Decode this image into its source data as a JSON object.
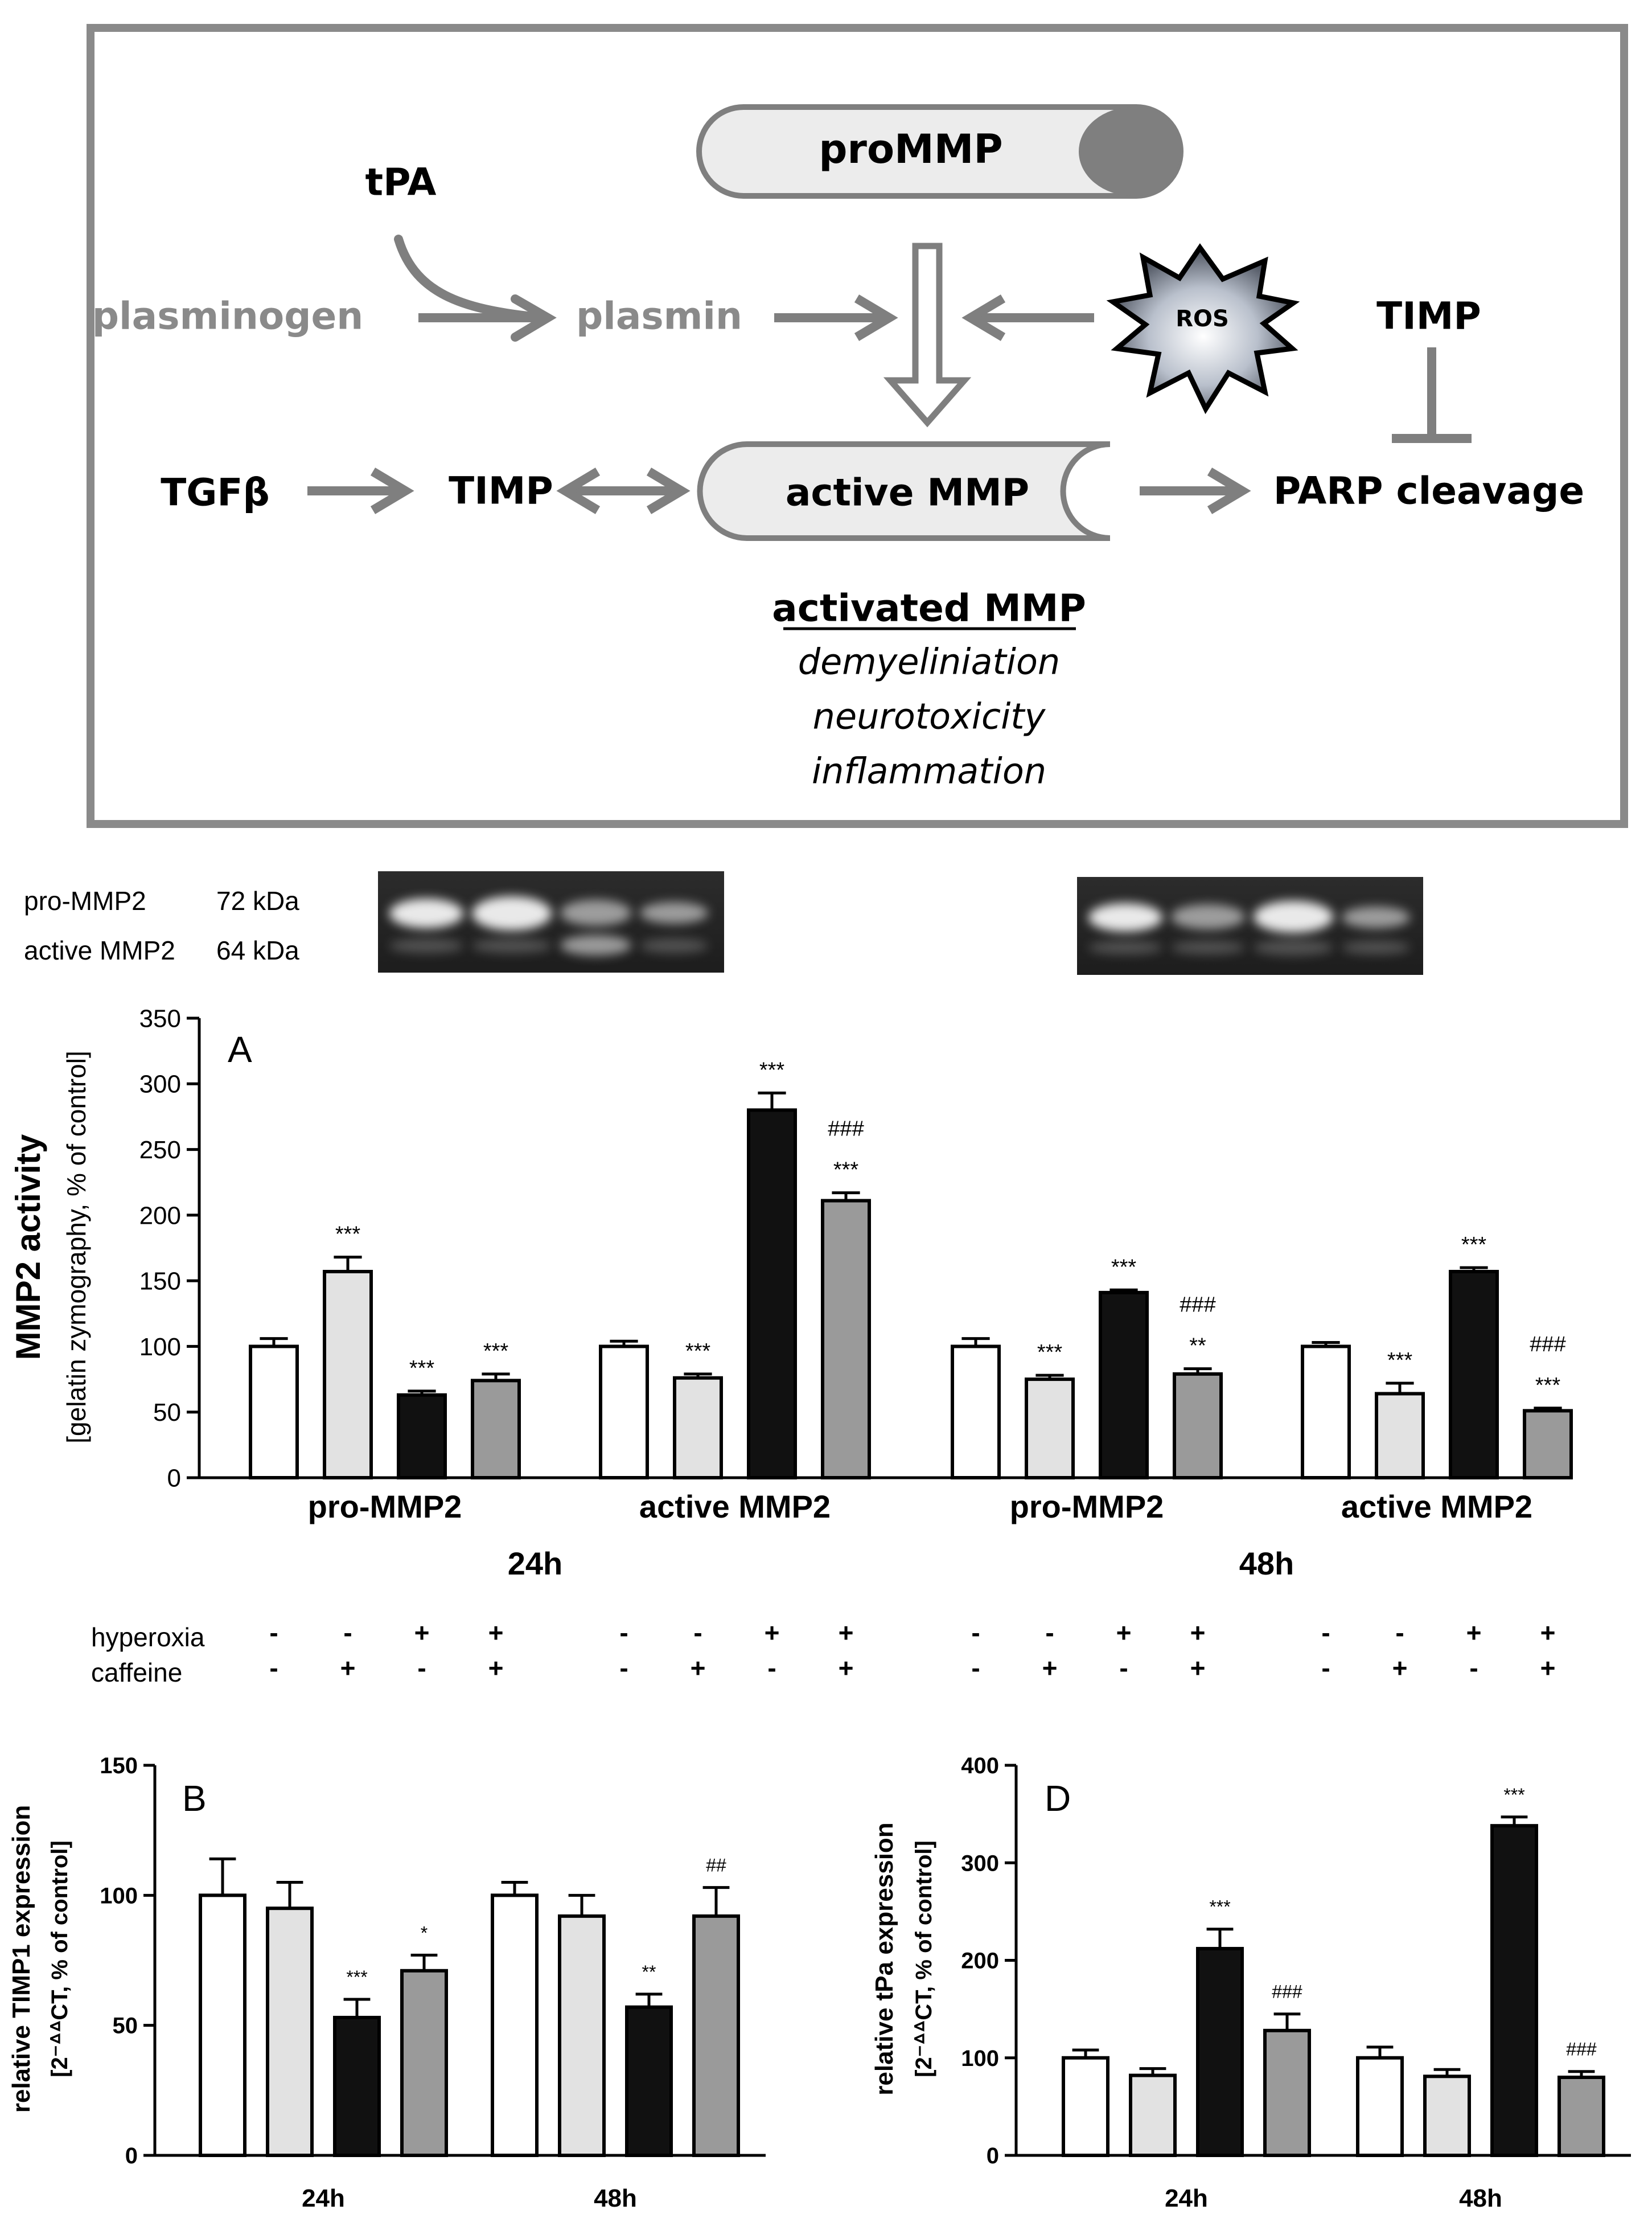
{
  "diagram": {
    "promm": "proMMP",
    "tpa": "tPA",
    "plasminogen": "plasminogen",
    "plasmin": "plasmin",
    "ros": "ROS",
    "timp_right": "TIMP",
    "tgfb": "TGFβ",
    "timp_left": "TIMP",
    "active_mmp": "active MMP",
    "parp": "PARP cleavage",
    "activated_title": "activated MMP",
    "effects": [
      "demyeliniation",
      "neurotoxicity",
      "inflammation"
    ],
    "colors": {
      "frame": "#8a8a8a",
      "grey_text": "#8a8a8a",
      "capsule_fill": "#ececec",
      "cap_dark": "#7f7f7f"
    }
  },
  "gel": {
    "labels": [
      "pro-MMP2",
      "active MMP2"
    ],
    "sizes": [
      "72 kDa",
      "64 kDa"
    ]
  },
  "treatments": {
    "rows": [
      {
        "label": "hyperoxia",
        "signs": [
          "-",
          "-",
          "+",
          "+",
          "-",
          "-",
          "+",
          "+",
          "-",
          "-",
          "+",
          "+",
          "-",
          "-",
          "+",
          "+"
        ]
      },
      {
        "label": "caffeine",
        "signs": [
          "-",
          "+",
          "-",
          "+",
          "-",
          "+",
          "-",
          "+",
          "-",
          "+",
          "-",
          "+",
          "-",
          "+",
          "-",
          "+"
        ]
      }
    ]
  },
  "chart_data": [
    {
      "panel": "A",
      "type": "bar",
      "ylabel_main": "MMP2 activity",
      "ylabel_sub": "[gelatin zymography, % of control]",
      "ylim": [
        0,
        350
      ],
      "yticks": [
        0,
        50,
        100,
        150,
        200,
        250,
        300,
        350
      ],
      "categories": [
        "pro-MMP2",
        "active MMP2",
        "pro-MMP2",
        "active MMP2"
      ],
      "time_groups": [
        "24h",
        "48h"
      ],
      "series_fill": [
        "#ffffff",
        "#e2e2e2",
        "#111111",
        "#9a9a9a"
      ],
      "groups": [
        {
          "values": [
            100,
            157,
            63,
            74
          ],
          "errors": [
            6,
            11,
            3,
            5
          ],
          "annotations": [
            [
              ""
            ],
            [
              "***"
            ],
            [
              "***"
            ],
            [
              "***"
            ]
          ]
        },
        {
          "values": [
            100,
            76,
            280,
            211
          ],
          "errors": [
            4,
            3,
            13,
            6
          ],
          "annotations": [
            [
              ""
            ],
            [
              "***"
            ],
            [
              "***"
            ],
            [
              "###",
              "***"
            ]
          ]
        },
        {
          "values": [
            100,
            75,
            141,
            79
          ],
          "errors": [
            6,
            3,
            2,
            4
          ],
          "annotations": [
            [
              ""
            ],
            [
              "***"
            ],
            [
              "***"
            ],
            [
              "###",
              "**"
            ]
          ]
        },
        {
          "values": [
            100,
            64,
            157,
            51
          ],
          "errors": [
            3,
            8,
            3,
            2
          ],
          "annotations": [
            [
              ""
            ],
            [
              "***"
            ],
            [
              "***"
            ],
            [
              "###",
              "***"
            ]
          ]
        }
      ]
    },
    {
      "panel": "B",
      "type": "bar",
      "ylabel_main": "relative TIMP1 expression",
      "ylabel_sub": "[2⁻ᐞᐞCT, % of control]",
      "ylim": [
        0,
        150
      ],
      "yticks": [
        0,
        50,
        100,
        150
      ],
      "categories": [
        "24h",
        "48h"
      ],
      "series_fill": [
        "#ffffff",
        "#e2e2e2",
        "#111111",
        "#9a9a9a"
      ],
      "groups": [
        {
          "values": [
            100,
            95,
            53,
            71
          ],
          "errors": [
            14,
            10,
            7,
            6
          ],
          "annotations": [
            [
              ""
            ],
            [
              ""
            ],
            [
              "***"
            ],
            [
              "*"
            ]
          ]
        },
        {
          "values": [
            100,
            92,
            57,
            92
          ],
          "errors": [
            5,
            8,
            5,
            11
          ],
          "annotations": [
            [
              ""
            ],
            [
              ""
            ],
            [
              "**"
            ],
            [
              "##"
            ]
          ]
        }
      ]
    },
    {
      "panel": "D",
      "type": "bar",
      "ylabel_main": "relative tPa expression",
      "ylabel_sub": "[2⁻ᐞᐞCT, % of control]",
      "ylim": [
        0,
        400
      ],
      "yticks": [
        0,
        100,
        200,
        300,
        400
      ],
      "categories": [
        "24h",
        "48h"
      ],
      "series_fill": [
        "#ffffff",
        "#e2e2e2",
        "#111111",
        "#9a9a9a"
      ],
      "groups": [
        {
          "values": [
            100,
            82,
            212,
            128
          ],
          "errors": [
            8,
            7,
            20,
            17
          ],
          "annotations": [
            [
              ""
            ],
            [
              ""
            ],
            [
              "***"
            ],
            [
              "###"
            ]
          ]
        },
        {
          "values": [
            100,
            81,
            338,
            80
          ],
          "errors": [
            11,
            7,
            9,
            6
          ],
          "annotations": [
            [
              ""
            ],
            [
              ""
            ],
            [
              "***"
            ],
            [
              "###"
            ]
          ]
        }
      ]
    }
  ]
}
